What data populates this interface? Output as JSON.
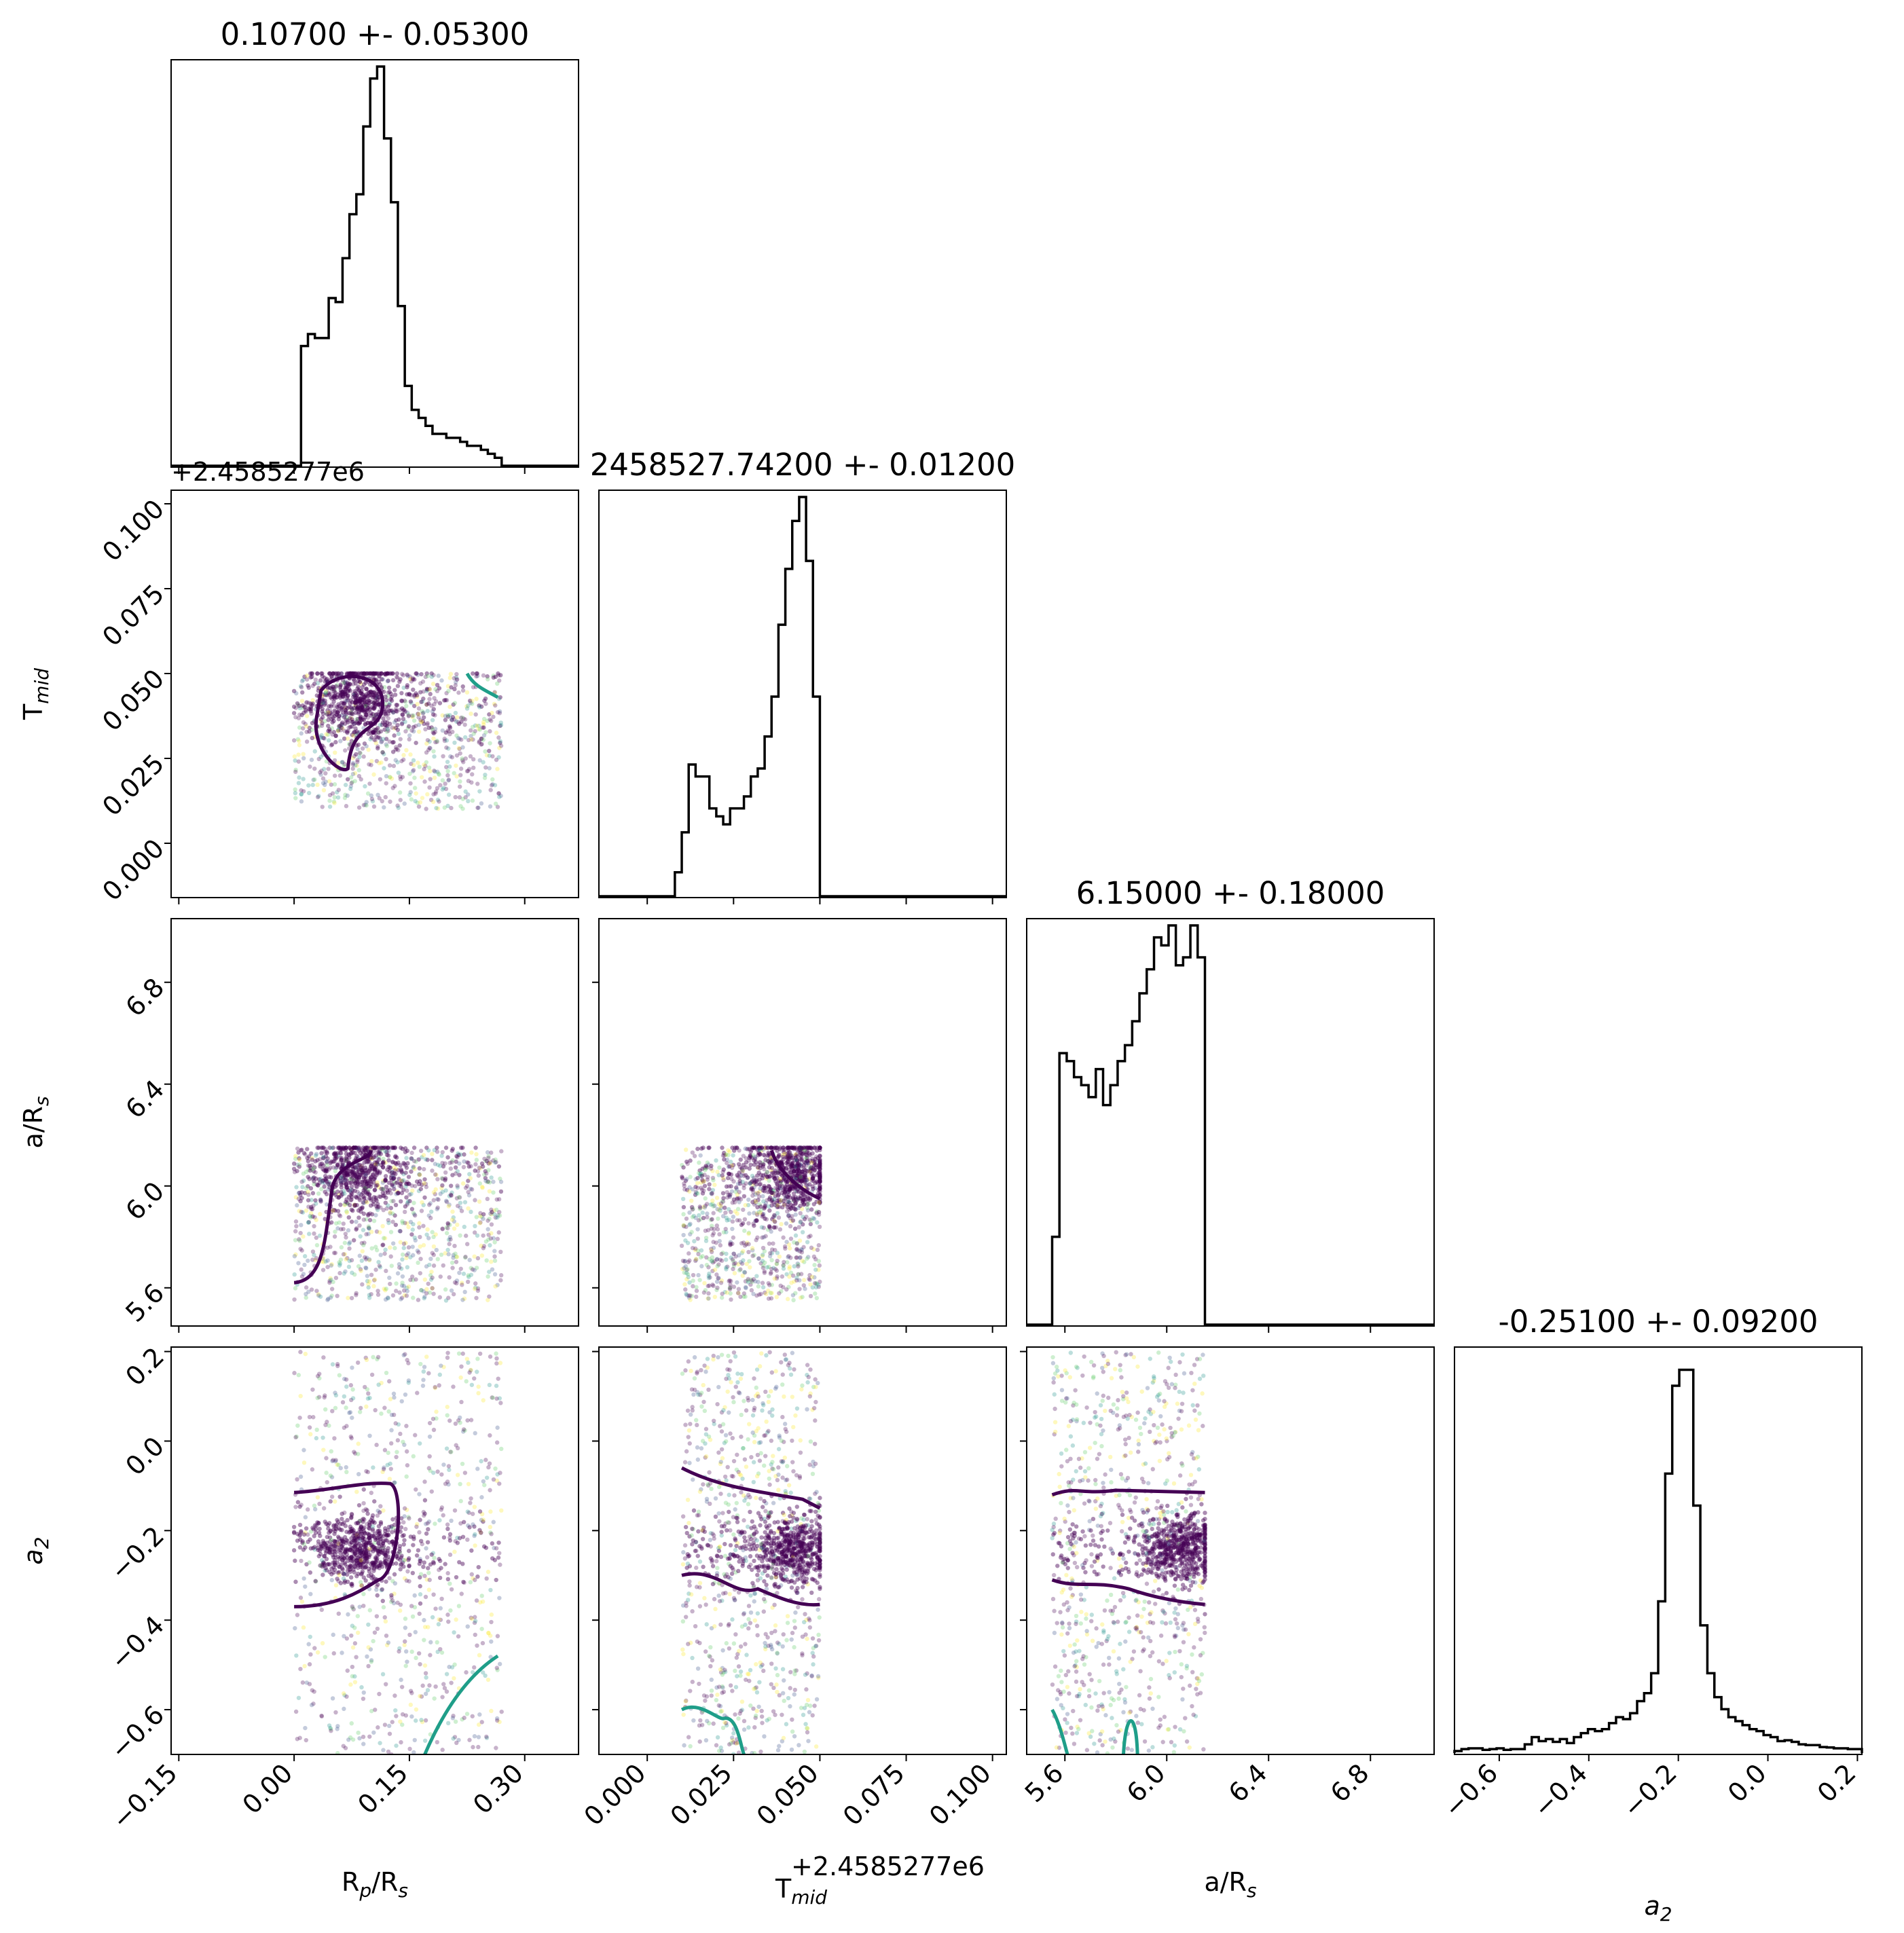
{
  "figure": {
    "offset_label": "+2.4585277e6"
  },
  "chart_data": {
    "type": "corner",
    "params": [
      {
        "key": "rp",
        "label_main": "R",
        "label_sub": "p",
        "label_rest": "/R",
        "label_sub2": "s",
        "title": "0.10700 +- 0.05300",
        "range": [
          -0.16,
          0.37
        ],
        "ticks": [
          -0.15,
          0.0,
          0.15,
          0.3
        ],
        "tick_labels": [
          "−0.15",
          "0.00",
          "0.15",
          "0.30"
        ],
        "hist_lo": 0.0,
        "hist_hi": 0.27,
        "hist": [
          0.0,
          0.3,
          0.33,
          0.32,
          0.32,
          0.42,
          0.41,
          0.52,
          0.63,
          0.68,
          0.85,
          0.97,
          1.0,
          0.82,
          0.66,
          0.4,
          0.2,
          0.14,
          0.12,
          0.1,
          0.08,
          0.08,
          0.07,
          0.07,
          0.06,
          0.05,
          0.05,
          0.04,
          0.03,
          0.02
        ]
      },
      {
        "key": "tmid",
        "label_main": "T",
        "label_sub": "mid",
        "label_rest": "",
        "label_sub2": "",
        "title": "2458527.74200 +- 0.01200",
        "range": [
          -0.014,
          0.104
        ],
        "ticks": [
          0.0,
          0.025,
          0.05,
          0.075,
          0.1
        ],
        "tick_labels": [
          "0.000",
          "0.025",
          "0.050",
          "0.075",
          "0.100"
        ],
        "offset": "+2.4585277e6",
        "hist_lo": 0.008,
        "hist_hi": 0.05,
        "hist": [
          0.06,
          0.16,
          0.33,
          0.3,
          0.3,
          0.22,
          0.2,
          0.18,
          0.22,
          0.22,
          0.25,
          0.3,
          0.32,
          0.4,
          0.5,
          0.68,
          0.82,
          0.94,
          1.0,
          0.84,
          0.5
        ]
      },
      {
        "key": "ars",
        "label_main": "a/R",
        "label_sub": "s",
        "label_rest": "",
        "label_sub2": "",
        "title": "6.15000 +- 0.18000",
        "range": [
          5.45,
          7.05
        ],
        "ticks": [
          5.6,
          6.0,
          6.4,
          6.8
        ],
        "tick_labels": [
          "5.6",
          "6.0",
          "6.4",
          "6.8"
        ],
        "hist_lo": 5.55,
        "hist_hi": 6.15,
        "hist": [
          0.22,
          0.68,
          0.66,
          0.62,
          0.6,
          0.57,
          0.64,
          0.55,
          0.6,
          0.66,
          0.7,
          0.76,
          0.83,
          0.89,
          0.97,
          0.95,
          1.0,
          0.9,
          0.92,
          1.0,
          0.92
        ]
      },
      {
        "key": "a2",
        "label_main": "a",
        "label_sub": "2",
        "label_rest": "",
        "label_sub2": "",
        "italic": true,
        "title": "-0.25100 +- 0.09200",
        "range": [
          -0.7,
          0.21
        ],
        "ticks": [
          -0.6,
          -0.4,
          -0.2,
          0.0,
          0.2
        ],
        "tick_labels": [
          "−0.6",
          "−0.4",
          "−0.2",
          "0.0",
          "0.2"
        ],
        "hist_lo": -0.7,
        "hist_hi": 0.21,
        "hist": [
          0.005,
          0.01,
          0.012,
          0.012,
          0.008,
          0.01,
          0.012,
          0.008,
          0.01,
          0.01,
          0.022,
          0.04,
          0.03,
          0.035,
          0.028,
          0.035,
          0.025,
          0.04,
          0.05,
          0.06,
          0.055,
          0.06,
          0.075,
          0.09,
          0.085,
          0.1,
          0.13,
          0.15,
          0.2,
          0.38,
          0.7,
          0.92,
          0.96,
          0.96,
          0.62,
          0.32,
          0.2,
          0.14,
          0.11,
          0.09,
          0.08,
          0.07,
          0.06,
          0.055,
          0.045,
          0.04,
          0.03,
          0.032,
          0.028,
          0.022,
          0.02,
          0.02,
          0.015,
          0.014,
          0.012,
          0.012,
          0.01,
          0.01
        ]
      }
    ],
    "ylims": {
      "tmid": [
        -0.016,
        0.104
      ],
      "ars": [
        5.45,
        7.05
      ],
      "a2": [
        -0.7,
        0.21
      ]
    },
    "scatter_extent": {
      "rp": [
        0.0,
        0.27
      ],
      "tmid": [
        0.01,
        0.05
      ],
      "ars": [
        5.55,
        6.15
      ],
      "a2": [
        -0.7,
        0.2
      ]
    },
    "colors": {
      "dense": "#440154",
      "mid": "#3b528b",
      "teal": "#21918c",
      "green": "#5ec962",
      "yellow": "#fde725",
      "contour_dark": "#440154",
      "contour_teal": "#1f9e89"
    }
  }
}
